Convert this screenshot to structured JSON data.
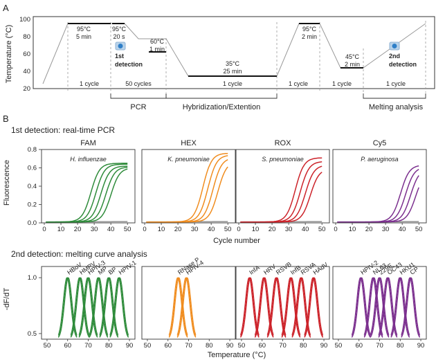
{
  "figure": {
    "panelA": {
      "label": "A",
      "ylabel": "Temperature (°C)",
      "yticks": [
        "100",
        "80",
        "60",
        "40",
        "20"
      ],
      "steps": [
        {
          "temp": "95°C",
          "time": "5 min"
        },
        {
          "temp": "95°C",
          "time": "20 s"
        },
        {
          "temp": "60°C",
          "time": "1 min"
        },
        {
          "temp": "35°C",
          "time": "25 min"
        },
        {
          "temp": "95°C",
          "time": "2 min"
        },
        {
          "temp": "45°C",
          "time": "2 min"
        }
      ],
      "detections": [
        "1st\ndetection",
        "2nd\ndetection"
      ],
      "det1_line1": "1st",
      "det1_line2": "detection",
      "det2_line1": "2nd",
      "det2_line2": "detection",
      "cycles": [
        "1 cycle",
        "50 cycles",
        "1 cycle",
        "1 cycle",
        "1 cycle",
        "1 cycle"
      ],
      "brackets": [
        "PCR",
        "Hybridization/Extention",
        "Melting analysis"
      ]
    },
    "panelB": {
      "label": "B",
      "pcr_title": "1st detection: real-time PCR",
      "melt_title": "2nd detection: melting curve analysis",
      "pcr_ylabel": "Fluorescence",
      "pcr_xlabel": "Cycle number",
      "melt_ylabel": "-dF/dT",
      "melt_xlabel": "Temperature (°C)"
    }
  },
  "chart_data": [
    {
      "type": "line",
      "title": "1st detection: real-time PCR",
      "xlabel": "Cycle number",
      "ylabel": "Fluorescence",
      "xlim": [
        0,
        52
      ],
      "ylim": [
        0,
        0.8
      ],
      "xticks": [
        0,
        10,
        20,
        30,
        40,
        50
      ],
      "yticks": [
        0.0,
        0.2,
        0.4,
        0.6,
        0.8
      ],
      "panels": [
        {
          "channel": "FAM",
          "organism": "H. influenzae",
          "color": "#2e8b3a",
          "curves": [
            {
              "ct": 24,
              "plateau": 0.64
            },
            {
              "ct": 27,
              "plateau": 0.63
            },
            {
              "ct": 30,
              "plateau": 0.61
            },
            {
              "ct": 33,
              "plateau": 0.6
            },
            {
              "ct": 36,
              "plateau": 0.59
            }
          ],
          "baseline": 0.01
        },
        {
          "channel": "HEX",
          "organism": "K. pneumoniae",
          "color": "#f08c1e",
          "curves": [
            {
              "ct": 31,
              "plateau": 0.75
            },
            {
              "ct": 34,
              "plateau": 0.73
            },
            {
              "ct": 37,
              "plateau": 0.7
            },
            {
              "ct": 40,
              "plateau": 0.66
            }
          ],
          "baseline": 0.01
        },
        {
          "channel": "ROX",
          "organism": "S. pneumoniae",
          "color": "#cc2229",
          "curves": [
            {
              "ct": 30,
              "plateau": 0.7
            },
            {
              "ct": 33,
              "plateau": 0.66
            },
            {
              "ct": 36,
              "plateau": 0.62
            },
            {
              "ct": 39,
              "plateau": 0.58
            }
          ],
          "baseline": 0.01
        },
        {
          "channel": "Cy5",
          "organism": "P. aeruginosa",
          "color": "#7b2f8e",
          "curves": [
            {
              "ct": 35,
              "plateau": 0.62
            },
            {
              "ct": 38,
              "plateau": 0.6
            },
            {
              "ct": 41,
              "plateau": 0.58
            },
            {
              "ct": 44,
              "plateau": 0.55
            }
          ],
          "baseline": 0.01
        }
      ],
      "negative_color": "#999999"
    },
    {
      "type": "line",
      "title": "2nd detection: melting curve analysis",
      "xlabel": "Temperature (°C)",
      "ylabel": "-dF/dT",
      "xlim": [
        48,
        92
      ],
      "ylim": [
        0.45,
        1.1
      ],
      "xticks": [
        50,
        60,
        70,
        80,
        90
      ],
      "yticks": [
        0.5,
        1.0
      ],
      "ytick_labels": [
        "0.5",
        "1.0"
      ],
      "panels": [
        {
          "color": "#2e8b3a",
          "peaks": [
            {
              "name": "HBoV",
              "tm": 60
            },
            {
              "name": "HMPV",
              "tm": 66
            },
            {
              "name": "HPIV-3",
              "tm": 70
            },
            {
              "name": "MP",
              "tm": 75
            },
            {
              "name": "BP",
              "tm": 80
            },
            {
              "name": "HPIV-1",
              "tm": 85
            }
          ]
        },
        {
          "color": "#f08c1e",
          "peaks": [
            {
              "name": "RNase P",
              "tm": 65
            },
            {
              "name": "HPIV-4",
              "tm": 69
            }
          ]
        },
        {
          "color": "#cc2229",
          "peaks": [
            {
              "name": "InfA",
              "tm": 54
            },
            {
              "name": "HRV",
              "tm": 61
            },
            {
              "name": "RSVB",
              "tm": 67
            },
            {
              "name": "InfB",
              "tm": 74
            },
            {
              "name": "RSVA",
              "tm": 79
            },
            {
              "name": "HAdV",
              "tm": 85
            }
          ]
        },
        {
          "color": "#7b2f8e",
          "peaks": [
            {
              "name": "HPIV-2",
              "tm": 61
            },
            {
              "name": "NL63",
              "tm": 67
            },
            {
              "name": "229E",
              "tm": 70
            },
            {
              "name": "OC43",
              "tm": 74
            },
            {
              "name": "HKU1",
              "tm": 80
            },
            {
              "name": "CP",
              "tm": 85
            }
          ]
        }
      ]
    }
  ]
}
